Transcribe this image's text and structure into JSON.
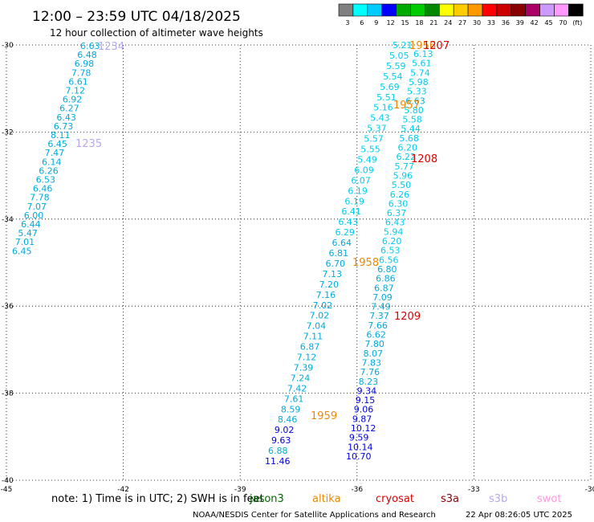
{
  "header": {
    "title": "12:00 – 23:59 UTC 04/18/2025",
    "subtitle": "12 hour collection of altimeter wave heights"
  },
  "colorbar": {
    "colors": [
      "#808080",
      "#00ffff",
      "#00ccff",
      "#0000ff",
      "#00aa00",
      "#00cc00",
      "#008800",
      "#ffff00",
      "#ffcc00",
      "#ff9900",
      "#ff0000",
      "#cc0000",
      "#880000",
      "#aa0066",
      "#cc99ff",
      "#ff99ff",
      "#000000"
    ],
    "labels": [
      "3",
      "6",
      "9",
      "12",
      "15",
      "18",
      "21",
      "24",
      "27",
      "30",
      "33",
      "36",
      "39",
      "42",
      "45",
      "70",
      "(ft)"
    ]
  },
  "map": {
    "lat_labels": [
      "-30",
      "-32",
      "-34",
      "-36",
      "-38",
      "-40"
    ],
    "lon_labels": [
      "-45",
      "-42",
      "-39",
      "-36",
      "-33",
      "-30"
    ],
    "lat_range": [
      -40,
      -30
    ],
    "lon_range": [
      -45,
      -30
    ],
    "grid": "dotted"
  },
  "tracks": [
    {
      "name": "track-a",
      "values": [
        "6.63",
        "6.48",
        "6.98",
        "7.78",
        "6.61",
        "7.12",
        "6.92",
        "6.27",
        "6.43",
        "6.73",
        "8.11",
        "6.45",
        "7.47",
        "6.14",
        "6.26",
        "6.53",
        "6.46",
        "7.78",
        "7.07",
        "6.00",
        "6.44",
        "5.47",
        "7.01",
        "6.45"
      ],
      "colors": [
        "#00aadd",
        "#00aadd",
        "#00aadd",
        "#00aadd",
        "#00aadd",
        "#00aadd",
        "#00aadd",
        "#00aadd",
        "#00aadd",
        "#00aadd",
        "#00aadd",
        "#00aadd",
        "#00aadd",
        "#00aadd",
        "#00aadd",
        "#00aadd",
        "#00aadd",
        "#00aadd",
        "#00aadd",
        "#00aadd",
        "#00aadd",
        "#00aadd",
        "#00aadd",
        "#00aadd"
      ]
    },
    {
      "name": "track-b",
      "values": [
        "5.21",
        "5.05",
        "5.59",
        "5.54",
        "5.69",
        "5.51",
        "5.16",
        "5.43",
        "5.37",
        "5.57",
        "5.55",
        "5.49",
        "6.09",
        "6.07",
        "6.19",
        "6.19",
        "6.41",
        "6.43",
        "6.29",
        "6.64",
        "6.81",
        "6.70",
        "7.13",
        "7.20",
        "7.16",
        "7.02",
        "7.02",
        "7.04",
        "7.11",
        "6.87",
        "7.12",
        "7.39",
        "7.24",
        "7.42",
        "7.61",
        "8.59",
        "8.46",
        "9.02",
        "9.63",
        "6.88",
        "11.46"
      ]
    },
    {
      "name": "track-c",
      "values": [
        "6.13",
        "5.61",
        "5.74",
        "5.98",
        "5.33",
        "6.63",
        "5.80",
        "5.58",
        "5.44",
        "5.68",
        "6.20",
        "6.22",
        "5.77",
        "5.96",
        "5.50",
        "6.26",
        "6.30",
        "6.37",
        "6.43",
        "5.94",
        "6.20",
        "6.53",
        "6.56",
        "6.80",
        "6.86",
        "6.87",
        "7.09",
        "7.49",
        "7.37",
        "7.66",
        "6.62",
        "7.80",
        "8.07",
        "7.83",
        "7.76",
        "8.23",
        "9.34",
        "9.15",
        "9.06",
        "9.87",
        "10.12",
        "9.59",
        "10.14",
        "10.70"
      ]
    }
  ],
  "time_labels": [
    {
      "text": "1234",
      "color": "#b8a8e8"
    },
    {
      "text": "1235",
      "color": "#b8a8e8"
    },
    {
      "text": "1956",
      "color": "#ee8800"
    },
    {
      "text": "1207",
      "color": "#dd0000"
    },
    {
      "text": "1957",
      "color": "#ee8800"
    },
    {
      "text": "1208",
      "color": "#dd0000"
    },
    {
      "text": "1958",
      "color": "#ee8800"
    },
    {
      "text": "1209",
      "color": "#dd0000"
    },
    {
      "text": "1959",
      "color": "#ee8800"
    }
  ],
  "footer": {
    "note": "note:  1) Time is in UTC;  2) SWH is in feet",
    "satellites": [
      {
        "name": "jason3",
        "color": "#006600"
      },
      {
        "name": "altika",
        "color": "#ee8800"
      },
      {
        "name": "cryosat",
        "color": "#dd0000"
      },
      {
        "name": "s3a",
        "color": "#880000"
      },
      {
        "name": "s3b",
        "color": "#b8a8e8"
      },
      {
        "name": "swot",
        "color": "#ff99dd"
      }
    ],
    "credit": "NOAA/NESDIS Center for Satellite Applications and Research",
    "timestamp": "22 Apr 08:26:05 UTC 2025"
  }
}
